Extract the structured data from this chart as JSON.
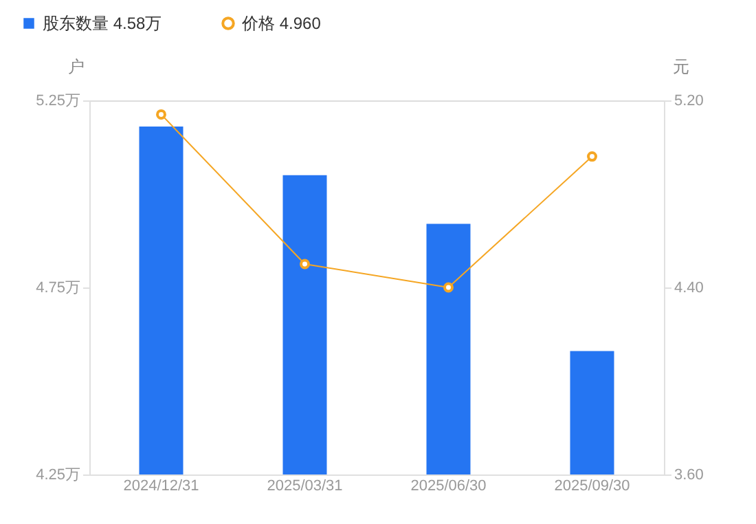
{
  "chart_data": {
    "type": "bar",
    "categories": [
      "2024/12/31",
      "2025/03/31",
      "2025/06/30",
      "2025/09/30"
    ],
    "series": [
      {
        "name": "股东数量 4.58万",
        "color": "#2575f2",
        "values": [
          5.18,
          5.05,
          4.92,
          4.58
        ]
      },
      {
        "name": "价格 4.960",
        "type": "line",
        "axis": "y2",
        "color": "#f5a623",
        "values": [
          5.14,
          4.5,
          4.4,
          4.96
        ]
      }
    ],
    "ylabel": "户",
    "y2label": "元",
    "ylim": [
      4.25,
      5.25
    ],
    "yticks": [
      {
        "value": 4.25,
        "label": "4.25万"
      },
      {
        "value": 4.75,
        "label": "4.75万"
      },
      {
        "value": 5.25,
        "label": "5.25万"
      }
    ],
    "y2lim": [
      3.6,
      5.2
    ],
    "y2ticks": [
      {
        "value": 3.6,
        "label": "3.60"
      },
      {
        "value": 4.4,
        "label": "4.40"
      },
      {
        "value": 5.2,
        "label": "5.20"
      }
    ],
    "legend": "top left",
    "marker": "circle",
    "line_style": "solid"
  }
}
